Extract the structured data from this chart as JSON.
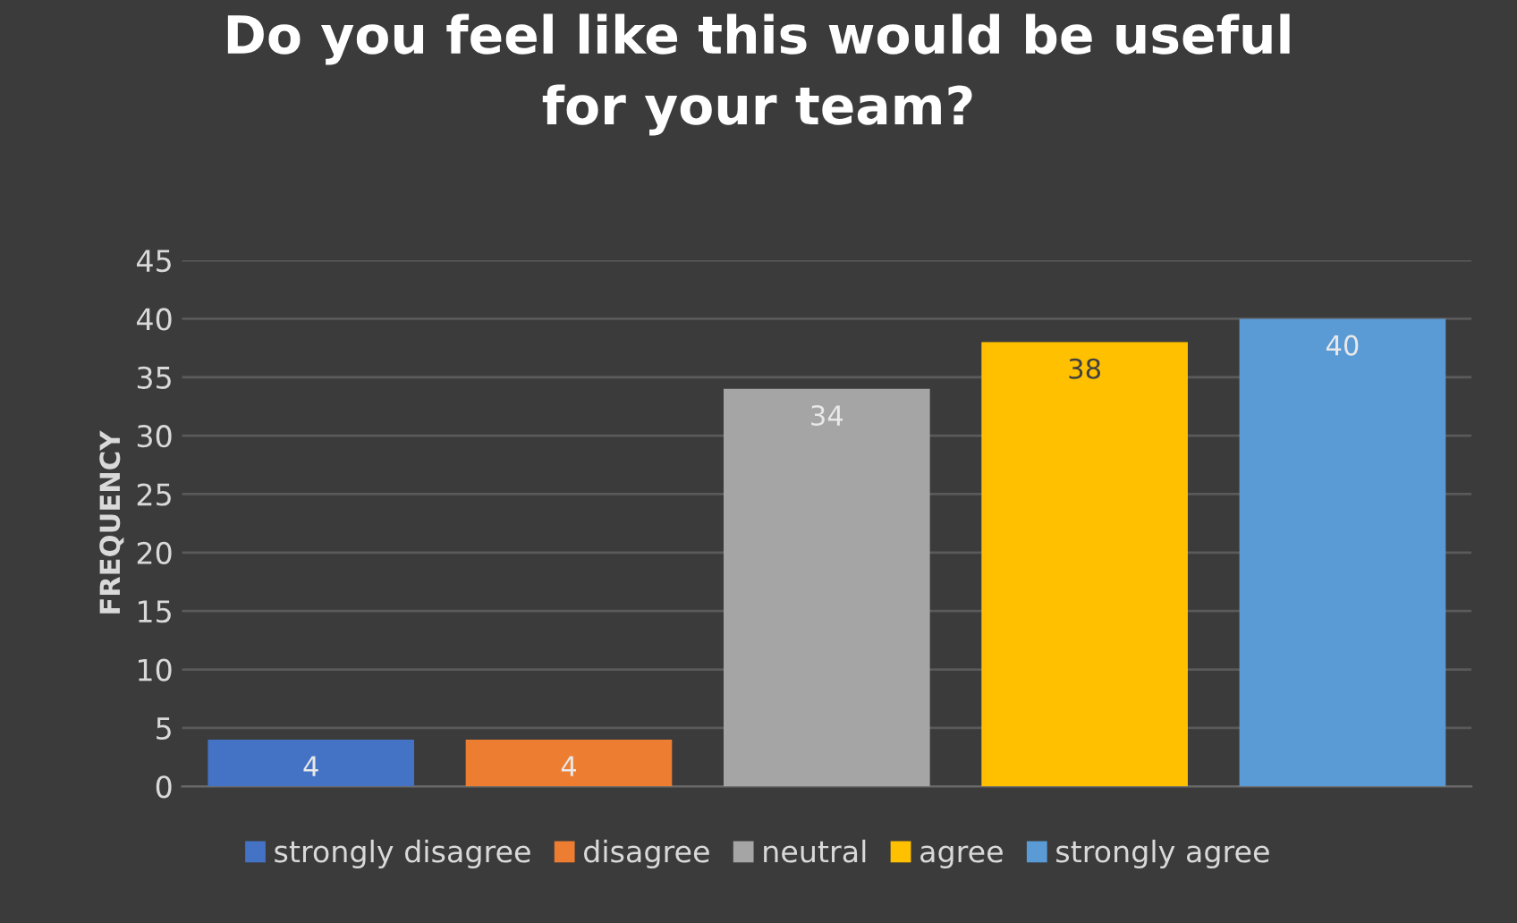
{
  "chart_data": {
    "type": "bar",
    "title": "Do you feel like this would be useful\nfor your team?",
    "ylabel": "FREQUENCY",
    "categories": [
      null,
      null,
      null,
      null,
      null
    ],
    "series": [
      {
        "name": "strongly disagree",
        "color": "#4472c4",
        "values": [
          4,
          null,
          null,
          null,
          null
        ]
      },
      {
        "name": "disagree",
        "color": "#ed7d31",
        "values": [
          null,
          4,
          null,
          null,
          null
        ]
      },
      {
        "name": "neutral",
        "color": "#a5a5a5",
        "values": [
          null,
          null,
          34,
          null,
          null
        ]
      },
      {
        "name": "agree",
        "color": "#ffc000",
        "values": [
          null,
          null,
          null,
          38,
          null
        ]
      },
      {
        "name": "strongly agree",
        "color": "#5b9bd5",
        "values": [
          null,
          null,
          null,
          null,
          40
        ]
      }
    ],
    "ylim": [
      0,
      45
    ],
    "yticks": [
      0,
      5,
      10,
      15,
      20,
      25,
      30,
      35,
      40,
      45
    ],
    "grid": "y",
    "legend": "bottom",
    "data_labels": true
  }
}
